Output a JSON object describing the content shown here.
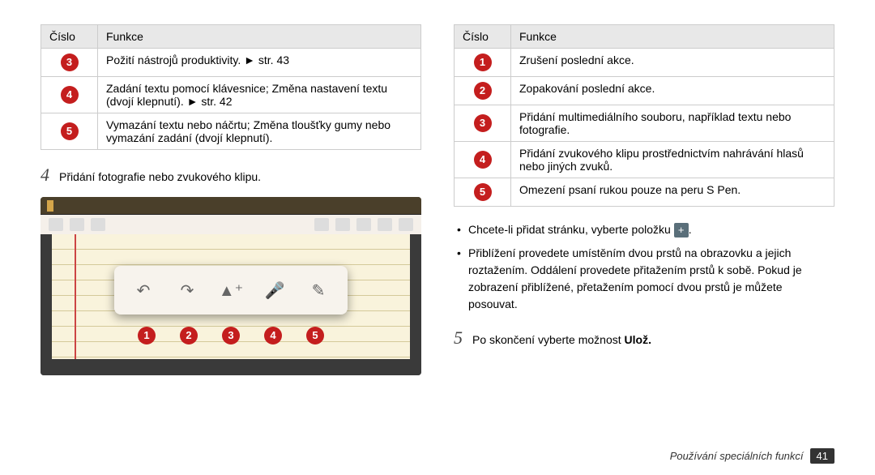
{
  "leftTable": {
    "headers": {
      "num": "Číslo",
      "func": "Funkce"
    },
    "rows": [
      {
        "n": "3",
        "t": "Požití nástrojů produktivity. ► str. 43"
      },
      {
        "n": "4",
        "t": "Zadání textu pomocí klávesnice; Změna nastavení textu (dvojí klepnutí). ► str. 42"
      },
      {
        "n": "5",
        "t": "Vymazání textu nebo náčrtu; Změna tloušťky gumy nebo vymazání zadání (dvojí klepnutí)."
      }
    ]
  },
  "step4": {
    "num": "4",
    "text": "Přidání fotografie nebo zvukového klipu."
  },
  "callouts": [
    "1",
    "2",
    "3",
    "4",
    "5"
  ],
  "rightTable": {
    "headers": {
      "num": "Číslo",
      "func": "Funkce"
    },
    "rows": [
      {
        "n": "1",
        "t": "Zrušení poslední akce."
      },
      {
        "n": "2",
        "t": "Zopakování poslední akce."
      },
      {
        "n": "3",
        "t": "Přidání multimediálního souboru, například textu nebo fotografie."
      },
      {
        "n": "4",
        "t": "Přidání zvukového klipu prostřednictvím nahrávání hlasů nebo jiných zvuků."
      },
      {
        "n": "5",
        "t": "Omezení psaní rukou pouze na peru S Pen."
      }
    ]
  },
  "bullets": {
    "b1a": "Chcete-li přidat stránku, vyberte položku ",
    "b1plus": "+",
    "b1b": ".",
    "b2": "Přiblížení provedete umístěním dvou prstů na obrazovku a jejich roztažením. Oddálení provedete přitažením prstů k sobě. Pokud je zobrazení přiblížené, přetažením pomocí dvou prstů je můžete posouvat."
  },
  "step5": {
    "num": "5",
    "pre": "Po skončení vyberte možnost ",
    "bold": "Ulož."
  },
  "footer": {
    "text": "Používání speciálních funkcí",
    "page": "41"
  },
  "colors": {
    "circle": "#c41e1e",
    "th_bg": "#e8e8e8"
  }
}
